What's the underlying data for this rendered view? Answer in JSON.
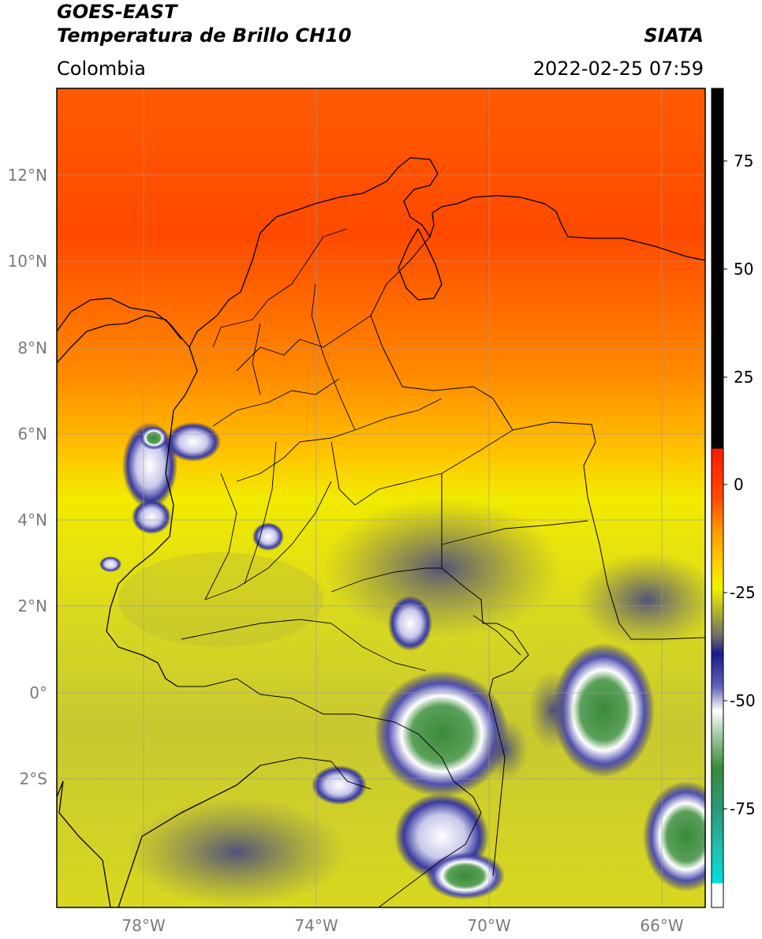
{
  "header": {
    "satellite": "GOES-EAST",
    "product": "Temperatura de Brillo CH10",
    "region": "Colombia",
    "agency": "SIATA",
    "datetime": "2022-02-25 07:59"
  },
  "map": {
    "lat_labels": [
      "12°N",
      "10°N",
      "8°N",
      "6°N",
      "4°N",
      "2°N",
      "0°",
      "2°S"
    ],
    "lon_labels": [
      "78°W",
      "74°W",
      "70°W",
      "66°W"
    ]
  },
  "colorbar": {
    "ticks": [
      "75",
      "50",
      "25",
      "0",
      "-25",
      "-50",
      "-75"
    ],
    "colors": {
      "black": "#000000",
      "red": "#ff2a00",
      "orange": "#ff9900",
      "yellow": "#f2f200",
      "olive": "#a5a52a",
      "navy": "#1a1a8c",
      "white": "#ffffff",
      "green": "#3a8a3a",
      "cyan": "#00e0e0"
    }
  }
}
